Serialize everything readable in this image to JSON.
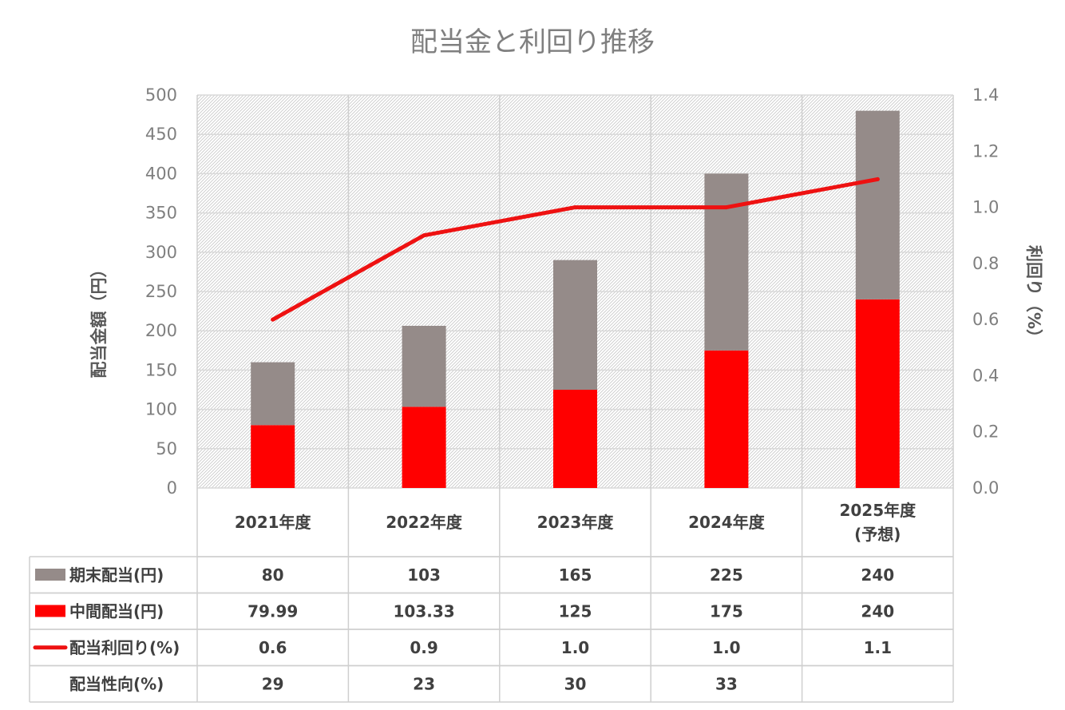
{
  "chart_data": {
    "type": "bar",
    "title": "配当金と利回り推移",
    "ylabel": "配当金額（円）",
    "y2label": "利回り（%）",
    "ylim": [
      0,
      500
    ],
    "y2lim": [
      0,
      1.4
    ],
    "yticks": [
      "0",
      "50",
      "100",
      "150",
      "200",
      "250",
      "300",
      "350",
      "400",
      "450",
      "500"
    ],
    "y2ticks": [
      "0.0",
      "0.2",
      "0.4",
      "0.6",
      "0.8",
      "1.0",
      "1.2",
      "1.4"
    ],
    "categories": [
      [
        "2021年度"
      ],
      [
        "2022年度"
      ],
      [
        "2023年度"
      ],
      [
        "2024年度"
      ],
      [
        "2025年度",
        "(予想)"
      ]
    ],
    "stacked": true,
    "grid": true,
    "legend": "table-bottom",
    "series": [
      {
        "name": "中間配当(円)",
        "kind": "bar",
        "color": "#ff0000",
        "values": [
          79.99,
          103.33,
          125,
          175,
          240
        ],
        "labels": [
          "79.99",
          "103.33",
          "125",
          "175",
          "240"
        ]
      },
      {
        "name": "期末配当(円)",
        "kind": "bar",
        "color": "#958b89",
        "values": [
          80,
          103,
          165,
          225,
          240
        ],
        "labels": [
          "80",
          "103",
          "165",
          "225",
          "240"
        ]
      },
      {
        "name": "配当利回り(%)",
        "kind": "line",
        "axis": "right",
        "color": "#ee1111",
        "values": [
          0.6,
          0.9,
          1.0,
          1.0,
          1.1
        ],
        "labels": [
          "0.6",
          "0.9",
          "1.0",
          "1.0",
          "1.1"
        ]
      }
    ],
    "table_rows": [
      {
        "label": "期末配当(円)",
        "series": "期末配当(円)",
        "legend_icon": "gray-square",
        "cells": [
          "80",
          "103",
          "165",
          "225",
          "240"
        ]
      },
      {
        "label": "中間配当(円)",
        "series": "中間配当(円)",
        "legend_icon": "red-square",
        "cells": [
          "79.99",
          "103.33",
          "125",
          "175",
          "240"
        ]
      },
      {
        "label": "配当利回り(%)",
        "series": "配当利回り(%)",
        "legend_icon": "red-line",
        "cells": [
          "0.6",
          "0.9",
          "1.0",
          "1.0",
          "1.1"
        ]
      },
      {
        "label": "配当性向(%)",
        "series": null,
        "legend_icon": null,
        "cells": [
          "29",
          "23",
          "30",
          "33",
          ""
        ]
      }
    ]
  }
}
